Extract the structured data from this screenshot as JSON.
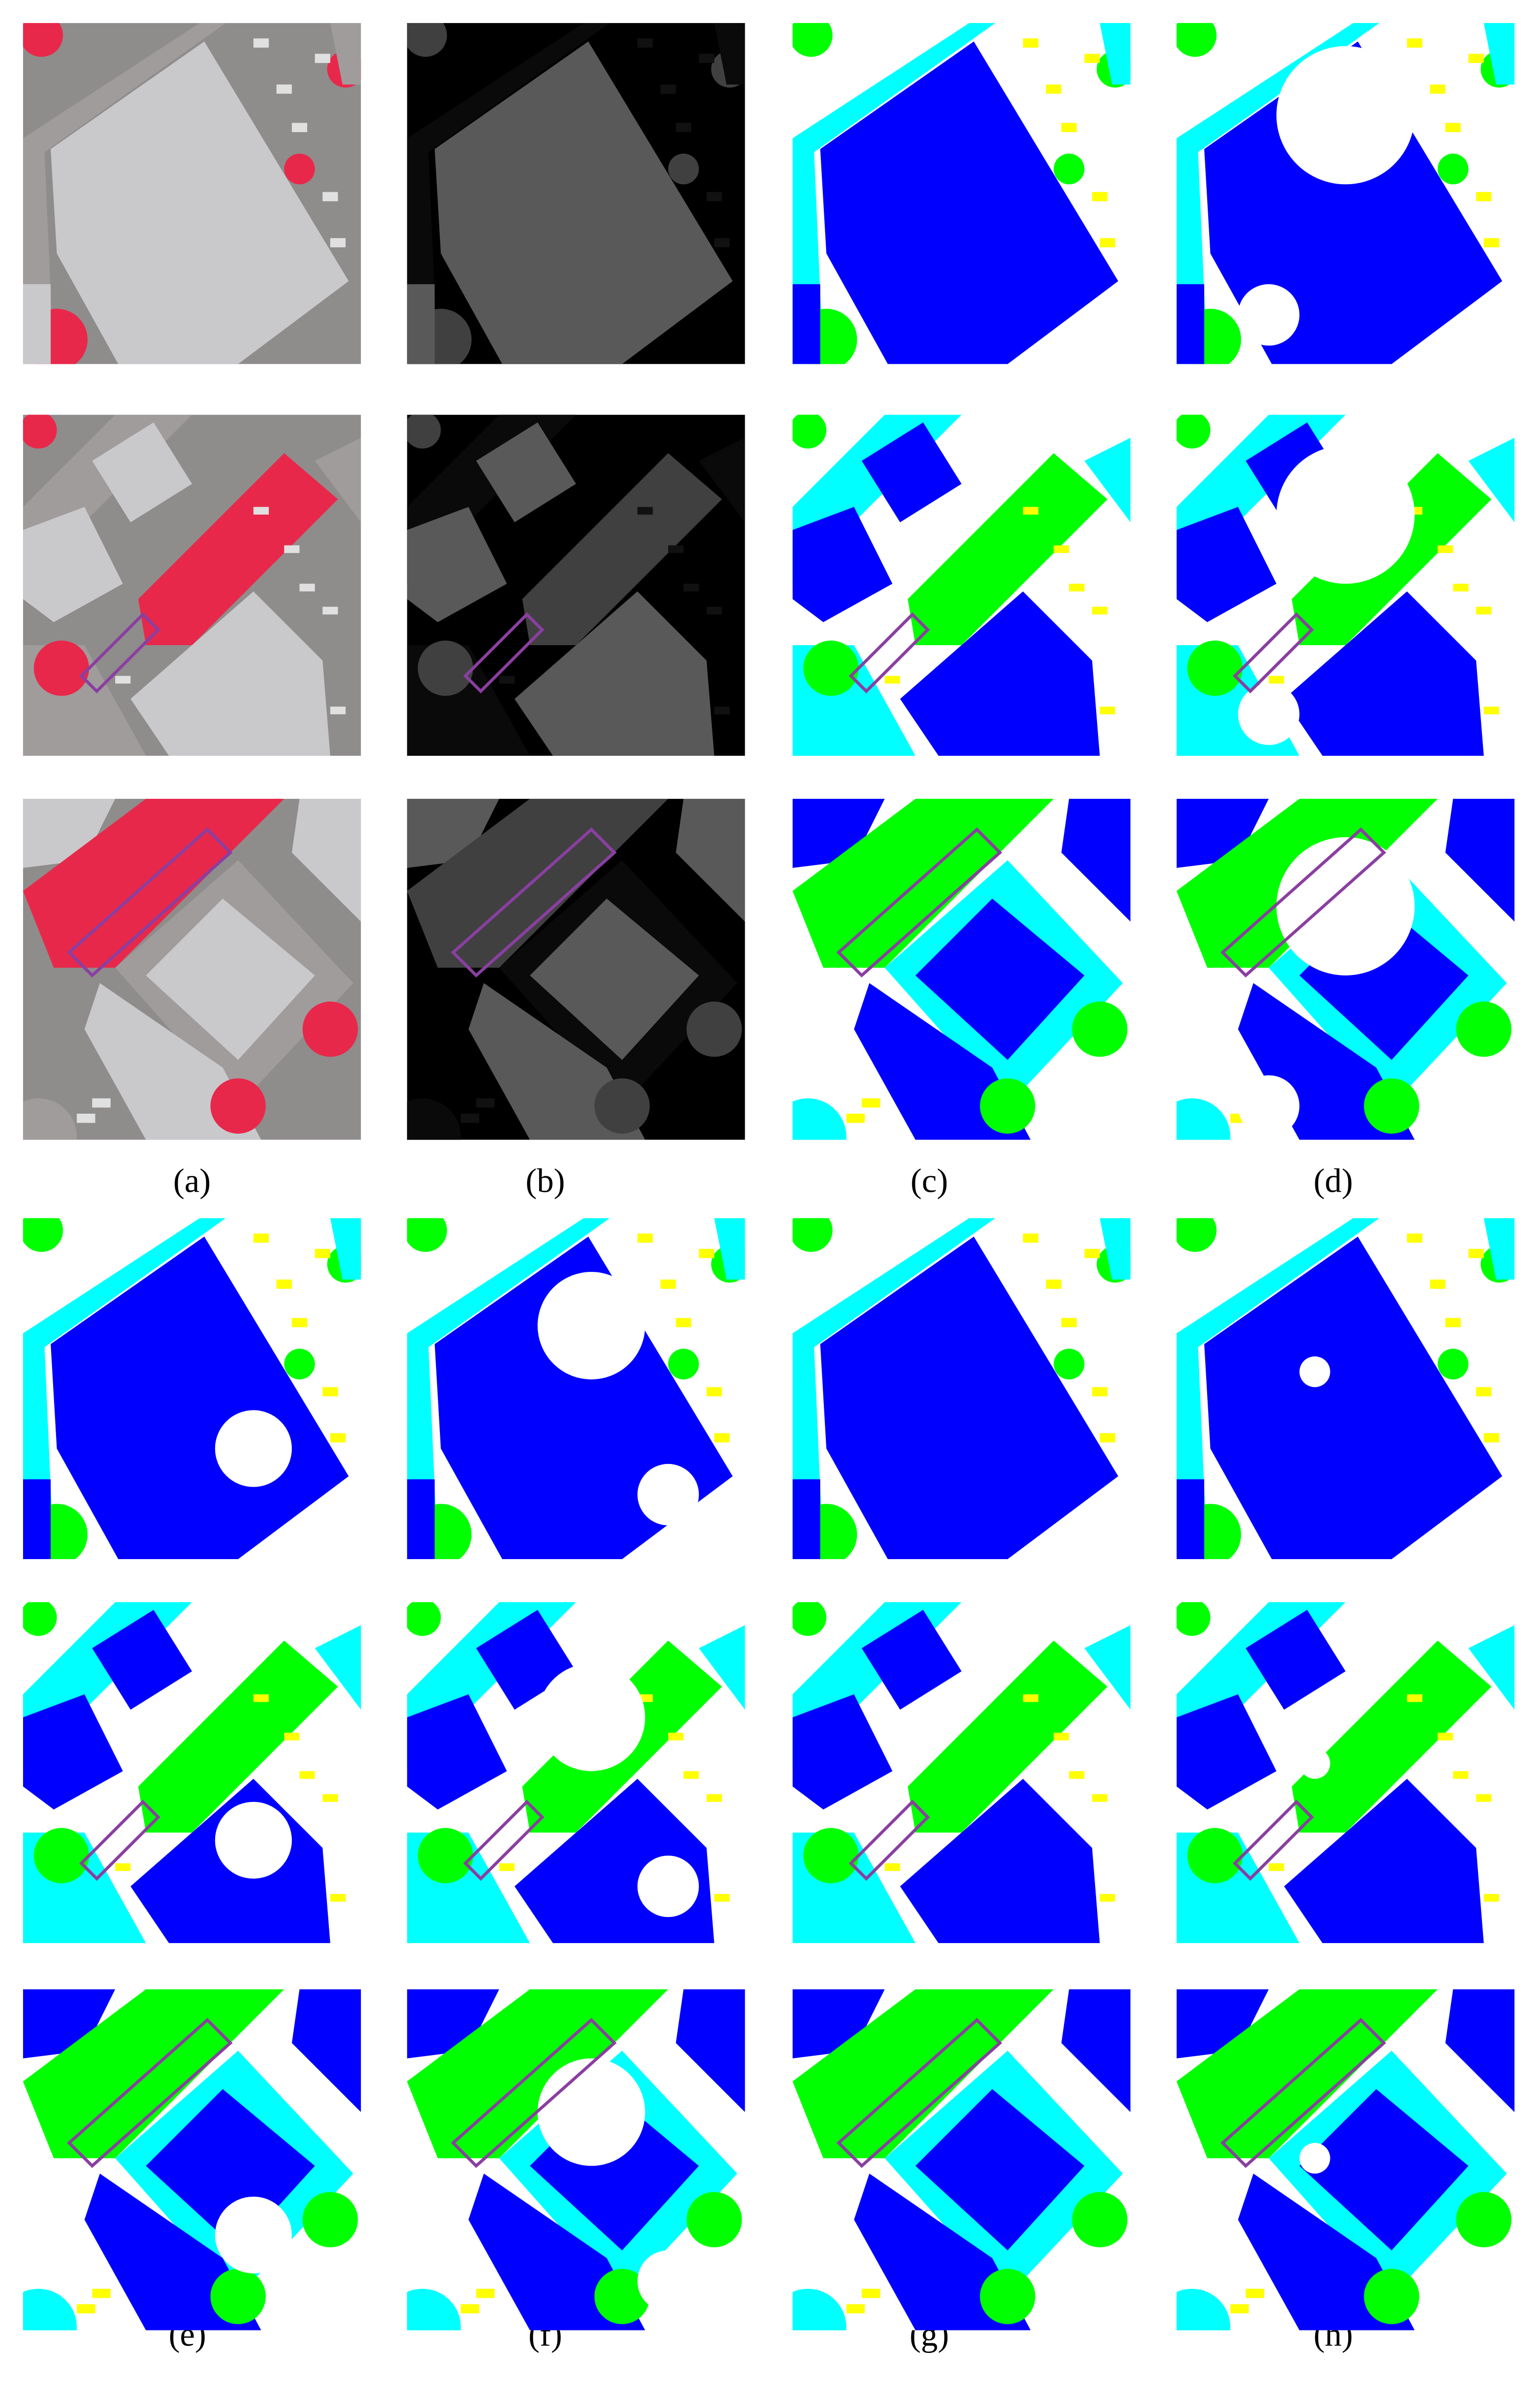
{
  "labels": {
    "top": [
      "(a)",
      "(b)",
      "(c)",
      "(d)"
    ],
    "bottom": [
      "(e)",
      "(f)",
      "(g)",
      "(h)"
    ]
  }
}
